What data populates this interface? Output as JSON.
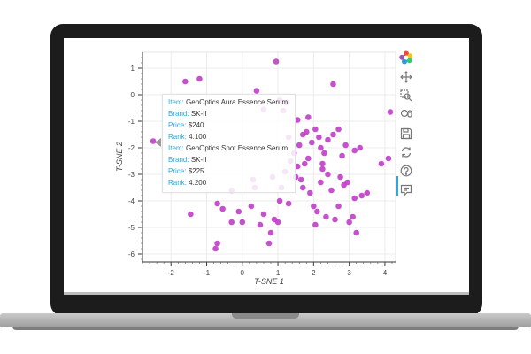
{
  "chart_data": {
    "type": "scatter",
    "xlabel": "T-SNE 1",
    "ylabel": "T-SNE 2",
    "xlim": [
      -2.8,
      4.3
    ],
    "ylim": [
      -6.3,
      1.6
    ],
    "xticks": [
      "-2",
      "-1",
      "0",
      "1",
      "2",
      "3",
      "4"
    ],
    "yticks": [
      "1",
      "0",
      "-1",
      "-2",
      "-3",
      "-4",
      "-5",
      "-6"
    ],
    "marker_color": "#c03ec8",
    "points": [
      [
        -2.5,
        -1.75
      ],
      [
        -1.6,
        0.5
      ],
      [
        -1.2,
        0.6
      ],
      [
        -1.45,
        -4.5
      ],
      [
        -0.75,
        -5.8
      ],
      [
        -0.7,
        -5.6
      ],
      [
        -0.7,
        -4.1
      ],
      [
        -0.55,
        -4.3
      ],
      [
        -0.3,
        -4.8
      ],
      [
        -0.3,
        -3.6
      ],
      [
        -0.1,
        -4.4
      ],
      [
        0.0,
        -4.8
      ],
      [
        0.25,
        -4.2
      ],
      [
        0.3,
        -3.2
      ],
      [
        0.35,
        -3.5
      ],
      [
        0.5,
        -4.9
      ],
      [
        0.6,
        -4.5
      ],
      [
        0.75,
        -5.6
      ],
      [
        0.8,
        -5.2
      ],
      [
        0.85,
        -3.1
      ],
      [
        0.9,
        -4.7
      ],
      [
        1.0,
        -4.8
      ],
      [
        1.05,
        -4.0
      ],
      [
        1.1,
        -3.5
      ],
      [
        1.2,
        -2.9
      ],
      [
        1.3,
        -4.1
      ],
      [
        1.35,
        -2.5
      ],
      [
        1.5,
        -3.1
      ],
      [
        1.55,
        -2.7
      ],
      [
        1.65,
        -3.2
      ],
      [
        1.7,
        -3.5
      ],
      [
        1.75,
        -2.6
      ],
      [
        1.85,
        -2.4
      ],
      [
        1.9,
        -3.7
      ],
      [
        2.0,
        -4.2
      ],
      [
        2.05,
        -4.9
      ],
      [
        2.1,
        -4.4
      ],
      [
        2.2,
        -3.3
      ],
      [
        2.25,
        -2.8
      ],
      [
        2.35,
        -4.6
      ],
      [
        2.4,
        -3.0
      ],
      [
        2.5,
        -3.6
      ],
      [
        2.6,
        -4.7
      ],
      [
        2.7,
        -4.2
      ],
      [
        2.75,
        -3.1
      ],
      [
        2.85,
        -3.4
      ],
      [
        2.95,
        -3.3
      ],
      [
        3.0,
        -4.8
      ],
      [
        3.1,
        -4.6
      ],
      [
        3.2,
        -5.2
      ],
      [
        3.35,
        -3.8
      ],
      [
        3.5,
        -3.7
      ],
      [
        3.15,
        -3.9
      ],
      [
        3.9,
        -2.6
      ],
      [
        4.1,
        -2.4
      ],
      [
        4.15,
        -0.65
      ],
      [
        3.3,
        -2.0
      ],
      [
        3.15,
        -2.1
      ],
      [
        2.9,
        -1.9
      ],
      [
        2.7,
        -1.3
      ],
      [
        2.55,
        -1.5
      ],
      [
        2.4,
        -1.7
      ],
      [
        2.3,
        -2.2
      ],
      [
        2.2,
        -2.0
      ],
      [
        2.15,
        -1.6
      ],
      [
        2.05,
        -1.3
      ],
      [
        1.95,
        -1.8
      ],
      [
        1.8,
        -1.4
      ],
      [
        1.7,
        -1.5
      ],
      [
        1.6,
        -1.9
      ],
      [
        1.45,
        -2.2
      ],
      [
        1.3,
        -1.6
      ],
      [
        1.25,
        -0.3
      ],
      [
        1.15,
        -0.6
      ],
      [
        1.05,
        -0.2
      ],
      [
        0.95,
        1.25
      ],
      [
        0.4,
        0.15
      ],
      [
        2.55,
        0.4
      ],
      [
        1.85,
        -0.85
      ],
      [
        2.25,
        -2.6
      ],
      [
        2.8,
        -2.3
      ],
      [
        1.55,
        -0.95
      ],
      [
        0.6,
        -0.55
      ]
    ]
  },
  "tooltip": {
    "items": [
      {
        "item_key": "Item:",
        "item": "GenOptics Aura Essence Serum",
        "brand_key": "Brand:",
        "brand": "SK-II",
        "price_key": "Price:",
        "price": "$240",
        "rank_key": "Rank:",
        "rank": "4.100"
      },
      {
        "item_key": "Item:",
        "item": "GenOptics Spot Essence Serum",
        "brand_key": "Brand:",
        "brand": "SK-II",
        "price_key": "Price:",
        "price": "$225",
        "rank_key": "Rank:",
        "rank": "4.200"
      }
    ]
  },
  "toolbar": {
    "tools": [
      "bokeh-logo-icon",
      "pan-icon",
      "box-zoom-icon",
      "wheel-zoom-icon",
      "save-icon",
      "reset-icon",
      "help-icon",
      "hover-icon"
    ],
    "active_tool": "hover-icon"
  }
}
